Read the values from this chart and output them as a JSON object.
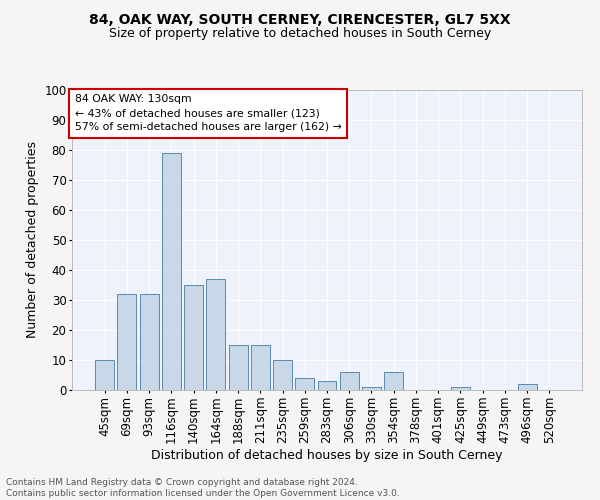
{
  "title1": "84, OAK WAY, SOUTH CERNEY, CIRENCESTER, GL7 5XX",
  "title2": "Size of property relative to detached houses in South Cerney",
  "xlabel": "Distribution of detached houses by size in South Cerney",
  "ylabel": "Number of detached properties",
  "footer1": "Contains HM Land Registry data © Crown copyright and database right 2024.",
  "footer2": "Contains public sector information licensed under the Open Government Licence v3.0.",
  "annotation_line1": "84 OAK WAY: 130sqm",
  "annotation_line2": "← 43% of detached houses are smaller (123)",
  "annotation_line3": "57% of semi-detached houses are larger (162) →",
  "categories": [
    "45sqm",
    "69sqm",
    "93sqm",
    "116sqm",
    "140sqm",
    "164sqm",
    "188sqm",
    "211sqm",
    "235sqm",
    "259sqm",
    "283sqm",
    "306sqm",
    "330sqm",
    "354sqm",
    "378sqm",
    "401sqm",
    "425sqm",
    "449sqm",
    "473sqm",
    "496sqm",
    "520sqm"
  ],
  "values": [
    10,
    32,
    32,
    79,
    35,
    37,
    15,
    15,
    10,
    4,
    3,
    6,
    1,
    6,
    0,
    0,
    1,
    0,
    0,
    2,
    0
  ],
  "bar_color": "#c8d8e8",
  "bar_edge_color": "#5a8ab0",
  "bg_color": "#eef2fa",
  "grid_color": "#ffffff",
  "fig_bg_color": "#f5f5f5",
  "ylim": [
    0,
    100
  ],
  "yticks": [
    0,
    10,
    20,
    30,
    40,
    50,
    60,
    70,
    80,
    90,
    100
  ],
  "annotation_box_color": "#cc0000",
  "title1_fontsize": 10,
  "title2_fontsize": 9,
  "ylabel_fontsize": 9,
  "xlabel_fontsize": 9,
  "tick_fontsize": 8.5,
  "footer_fontsize": 6.5
}
